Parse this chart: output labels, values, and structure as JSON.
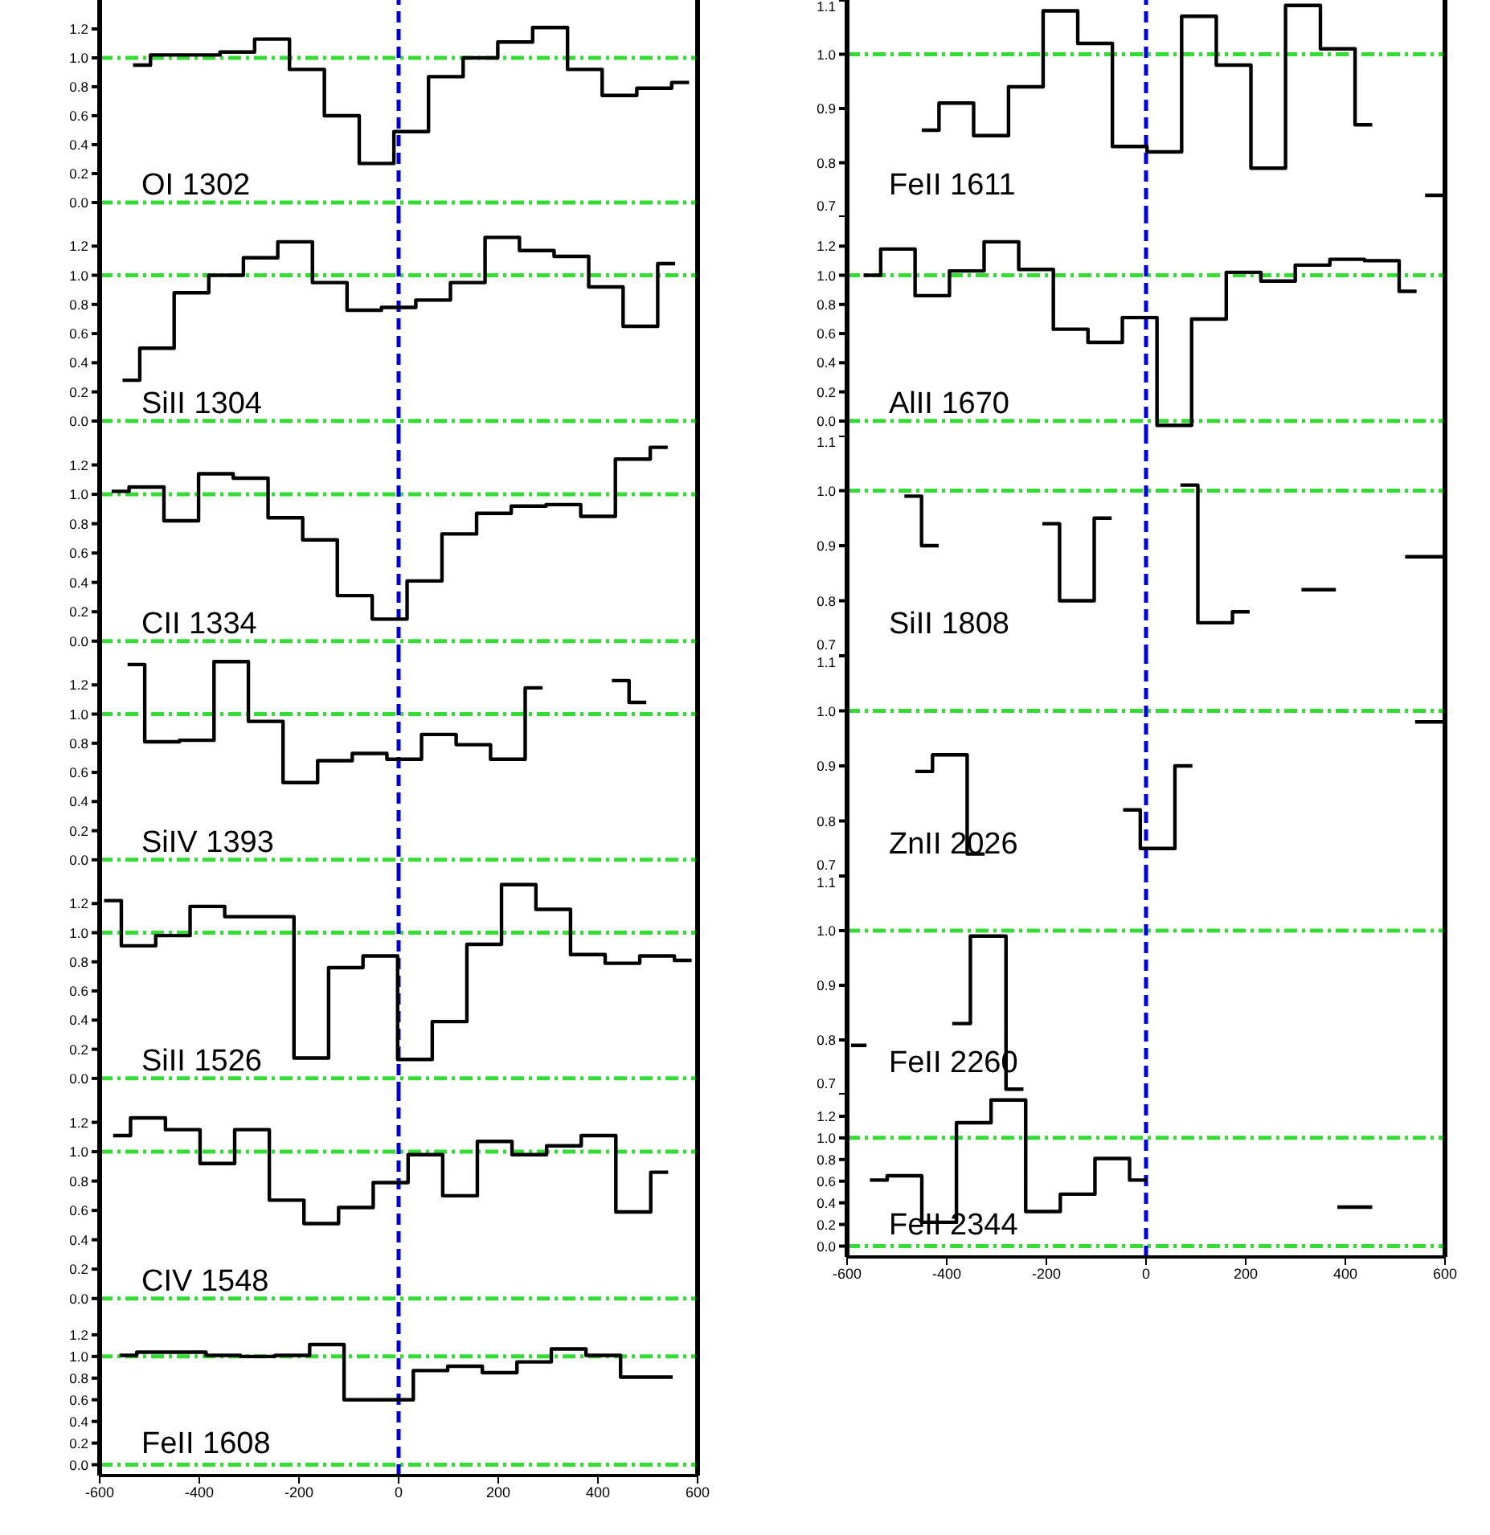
{
  "chart_data": [
    {
      "type": "step",
      "annotations": [
        "OI 1302"
      ],
      "color": "#000000",
      "x": [
        -533,
        -463,
        -393,
        -324,
        -254,
        -184,
        -114,
        -44,
        25,
        95,
        164,
        234,
        304,
        374,
        443,
        513,
        583
      ],
      "values": [
        0.95,
        1.02,
        1.02,
        1.04,
        1.13,
        0.92,
        0.6,
        0.27,
        0.49,
        0.87,
        1.0,
        1.11,
        1.21,
        0.92,
        0.74,
        0.79,
        0.83
      ],
      "xlim": [
        -600,
        600
      ],
      "xticks": [
        -600,
        -400,
        -200,
        0,
        200,
        400,
        600
      ],
      "ylim": [
        -0.1,
        1.4
      ],
      "yticks": [
        {
          "value": 0,
          "label": "0.0"
        },
        {
          "value": 0.2,
          "label": "0.2"
        },
        {
          "value": 0.4,
          "label": "0.4"
        },
        {
          "value": 0.6,
          "label": "0.6"
        },
        {
          "value": 0.8,
          "label": "0.8"
        },
        {
          "value": 1,
          "label": "1.0"
        },
        {
          "value": 1.2,
          "label": "1.2"
        }
      ],
      "tick_labels": "y",
      "ref_lines": [
        {
          "axis": "y",
          "value": 0,
          "color": "#33dd33",
          "line_style": "dashed"
        },
        {
          "axis": "y",
          "value": 1,
          "color": "#33dd33",
          "line_style": "dashed"
        },
        {
          "axis": "x",
          "value": 0,
          "color": "#0000dd",
          "line_style": "dashed"
        }
      ]
    },
    {
      "type": "step",
      "annotations": [
        "SiII 1304"
      ],
      "color": "#000000",
      "x": [
        -554,
        -485,
        -416,
        -346,
        -277,
        -208,
        -138,
        -69,
        0,
        69,
        139,
        208,
        277,
        347,
        416,
        485,
        555
      ],
      "values": [
        0.28,
        0.5,
        0.88,
        1.0,
        1.12,
        1.23,
        0.95,
        0.76,
        0.78,
        0.83,
        0.95,
        1.26,
        1.17,
        1.13,
        0.92,
        0.65,
        1.08
      ],
      "xlim": [
        -600,
        600
      ],
      "xticks": [
        -600,
        -400,
        -200,
        0,
        200,
        400,
        600
      ],
      "ylim": [
        -0.1,
        1.4
      ],
      "yticks": [
        {
          "value": 0,
          "label": "0.0"
        },
        {
          "value": 0.2,
          "label": "0.2"
        },
        {
          "value": 0.4,
          "label": "0.4"
        },
        {
          "value": 0.6,
          "label": "0.6"
        },
        {
          "value": 0.8,
          "label": "0.8"
        },
        {
          "value": 1,
          "label": "1.0"
        },
        {
          "value": 1.2,
          "label": "1.2"
        }
      ],
      "tick_labels": "y",
      "ref_lines": [
        {
          "axis": "y",
          "value": 0,
          "color": "#33dd33",
          "line_style": "dashed"
        },
        {
          "axis": "y",
          "value": 1,
          "color": "#33dd33",
          "line_style": "dashed"
        },
        {
          "axis": "x",
          "value": 0,
          "color": "#0000dd",
          "line_style": "dashed"
        }
      ]
    },
    {
      "type": "step",
      "annotations": [
        "CII 1334"
      ],
      "color": "#000000",
      "x": [
        -576,
        -506,
        -436,
        -367,
        -297,
        -227,
        -158,
        -88,
        -18,
        52,
        122,
        191,
        261,
        331,
        400,
        470,
        540
      ],
      "values": [
        1.02,
        1.05,
        0.82,
        1.14,
        1.11,
        0.84,
        0.69,
        0.31,
        0.15,
        0.41,
        0.73,
        0.87,
        0.92,
        0.93,
        0.85,
        1.24,
        1.32
      ],
      "xlim": [
        -600,
        600
      ],
      "xticks": [
        -600,
        -400,
        -200,
        0,
        200,
        400,
        600
      ],
      "ylim": [
        -0.1,
        1.4
      ],
      "yticks": [
        {
          "value": 0,
          "label": "0.0"
        },
        {
          "value": 0.2,
          "label": "0.2"
        },
        {
          "value": 0.4,
          "label": "0.4"
        },
        {
          "value": 0.6,
          "label": "0.6"
        },
        {
          "value": 0.8,
          "label": "0.8"
        },
        {
          "value": 1,
          "label": "1.0"
        },
        {
          "value": 1.2,
          "label": "1.2"
        }
      ],
      "tick_labels": "y",
      "ref_lines": [
        {
          "axis": "y",
          "value": 0,
          "color": "#33dd33",
          "line_style": "dashed"
        },
        {
          "axis": "y",
          "value": 1,
          "color": "#33dd33",
          "line_style": "dashed"
        },
        {
          "axis": "x",
          "value": 0,
          "color": "#0000dd",
          "line_style": "dashed"
        }
      ]
    },
    {
      "type": "step",
      "annotations": [
        "SiIV 1393"
      ],
      "color": "#000000",
      "x": [
        -544,
        -475,
        -405,
        -336,
        -267,
        -197,
        -128,
        -58,
        11,
        81,
        150,
        219,
        289,
        358,
        428,
        497
      ],
      "values": [
        1.34,
        0.81,
        0.82,
        1.36,
        0.95,
        0.53,
        0.68,
        0.73,
        0.69,
        0.86,
        0.79,
        0.69,
        1.18,
        null,
        1.23,
        1.08
      ],
      "xlim": [
        -600,
        600
      ],
      "xticks": [
        -600,
        -400,
        -200,
        0,
        200,
        400,
        600
      ],
      "ylim": [
        -0.1,
        1.4
      ],
      "yticks": [
        {
          "value": 0,
          "label": "0.0"
        },
        {
          "value": 0.2,
          "label": "0.2"
        },
        {
          "value": 0.4,
          "label": "0.4"
        },
        {
          "value": 0.6,
          "label": "0.6"
        },
        {
          "value": 0.8,
          "label": "0.8"
        },
        {
          "value": 1,
          "label": "1.0"
        },
        {
          "value": 1.2,
          "label": "1.2"
        }
      ],
      "tick_labels": "y",
      "ref_lines": [
        {
          "axis": "y",
          "value": 0,
          "color": "#33dd33",
          "line_style": "dashed"
        },
        {
          "axis": "y",
          "value": 1,
          "color": "#33dd33",
          "line_style": "dashed"
        },
        {
          "axis": "x",
          "value": 0,
          "color": "#0000dd",
          "line_style": "dashed"
        }
      ]
    },
    {
      "type": "step",
      "annotations": [
        "SiII 1526"
      ],
      "color": "#000000",
      "x": [
        -591,
        -522,
        -453,
        -384,
        -314,
        -245,
        -175,
        -106,
        -37,
        33,
        102,
        172,
        241,
        310,
        380,
        449,
        519,
        588
      ],
      "values": [
        1.22,
        0.91,
        0.98,
        1.18,
        1.11,
        1.11,
        0.14,
        0.76,
        0.84,
        0.13,
        0.39,
        0.92,
        1.33,
        1.16,
        0.85,
        0.79,
        0.84,
        0.81
      ],
      "xlim": [
        -600,
        600
      ],
      "xticks": [
        -600,
        -400,
        -200,
        0,
        200,
        400,
        600
      ],
      "ylim": [
        -0.1,
        1.4
      ],
      "yticks": [
        {
          "value": 0,
          "label": "0.0"
        },
        {
          "value": 0.2,
          "label": "0.2"
        },
        {
          "value": 0.4,
          "label": "0.4"
        },
        {
          "value": 0.6,
          "label": "0.6"
        },
        {
          "value": 0.8,
          "label": "0.8"
        },
        {
          "value": 1,
          "label": "1.0"
        },
        {
          "value": 1.2,
          "label": "1.2"
        }
      ],
      "tick_labels": "y",
      "ref_lines": [
        {
          "axis": "y",
          "value": 0,
          "color": "#33dd33",
          "line_style": "dashed"
        },
        {
          "axis": "y",
          "value": 1,
          "color": "#33dd33",
          "line_style": "dashed"
        },
        {
          "axis": "x",
          "value": 0,
          "color": "#0000dd",
          "line_style": "dashed"
        }
      ]
    },
    {
      "type": "step",
      "annotations": [
        "CIV 1548"
      ],
      "color": "#000000",
      "x": [
        -573,
        -503,
        -433,
        -364,
        -294,
        -225,
        -155,
        -86,
        -16,
        54,
        123,
        193,
        262,
        332,
        401,
        471,
        541
      ],
      "values": [
        1.11,
        1.23,
        1.15,
        0.92,
        1.15,
        0.67,
        0.51,
        0.62,
        0.79,
        0.98,
        0.7,
        1.07,
        0.98,
        1.04,
        1.11,
        0.59,
        0.86
      ],
      "xlim": [
        -600,
        600
      ],
      "xticks": [
        -600,
        -400,
        -200,
        0,
        200,
        400,
        600
      ],
      "ylim": [
        -0.1,
        1.4
      ],
      "yticks": [
        {
          "value": 0,
          "label": "0.0"
        },
        {
          "value": 0.2,
          "label": "0.2"
        },
        {
          "value": 0.4,
          "label": "0.4"
        },
        {
          "value": 0.6,
          "label": "0.6"
        },
        {
          "value": 0.8,
          "label": "0.8"
        },
        {
          "value": 1,
          "label": "1.0"
        },
        {
          "value": 1.2,
          "label": "1.2"
        }
      ],
      "tick_labels": "y",
      "ref_lines": [
        {
          "axis": "y",
          "value": 0,
          "color": "#33dd33",
          "line_style": "dashed"
        },
        {
          "axis": "y",
          "value": 1,
          "color": "#33dd33",
          "line_style": "dashed"
        },
        {
          "axis": "x",
          "value": 0,
          "color": "#0000dd",
          "line_style": "dashed"
        }
      ]
    },
    {
      "type": "step",
      "annotations": [
        "FeII 1608"
      ],
      "color": "#000000",
      "x": [
        -560,
        -491,
        -421,
        -352,
        -283,
        -213,
        -144,
        -75,
        -5,
        64,
        133,
        203,
        272,
        341,
        411,
        480,
        550
      ],
      "values": [
        1.01,
        1.04,
        1.04,
        1.01,
        1.0,
        1.01,
        1.11,
        0.6,
        0.6,
        0.87,
        0.91,
        0.85,
        0.95,
        1.07,
        1.01,
        0.81,
        0.81
      ],
      "xlim": [
        -600,
        600
      ],
      "xticks": [
        -600,
        -400,
        -200,
        0,
        200,
        400,
        600
      ],
      "ylim": [
        -0.1,
        1.4
      ],
      "yticks": [
        {
          "value": 0,
          "label": "0.0"
        },
        {
          "value": 0.2,
          "label": "0.2"
        },
        {
          "value": 0.4,
          "label": "0.4"
        },
        {
          "value": 0.6,
          "label": "0.6"
        },
        {
          "value": 0.8,
          "label": "0.8"
        },
        {
          "value": 1,
          "label": "1.0"
        },
        {
          "value": 1.2,
          "label": "1.2"
        }
      ],
      "ref_lines": [
        {
          "axis": "y",
          "value": 0,
          "color": "#33dd33",
          "line_style": "dashed"
        },
        {
          "axis": "y",
          "value": 1,
          "color": "#33dd33",
          "line_style": "dashed"
        },
        {
          "axis": "x",
          "value": 0,
          "color": "#0000dd",
          "line_style": "dashed"
        }
      ]
    },
    {
      "type": "step",
      "annotations": [
        "FeII 1611"
      ],
      "color": "#000000",
      "x": [
        -450,
        -381,
        -311,
        -241,
        -172,
        -102,
        -33,
        37,
        106,
        176,
        245,
        315,
        385,
        454,
        524,
        560,
        600
      ],
      "values": [
        0.86,
        0.91,
        0.85,
        0.94,
        1.08,
        1.02,
        0.83,
        0.82,
        1.07,
        0.98,
        0.79,
        1.09,
        1.01,
        0.87,
        null,
        0.74,
        0.74
      ],
      "xlim": [
        -600,
        600
      ],
      "xticks": [
        -600,
        -400,
        -200,
        0,
        200,
        400,
        600
      ],
      "ylim": [
        0.7,
        1.1
      ],
      "yticks": [
        {
          "value": 0.7,
          "label": "0.7"
        },
        {
          "value": 0.8,
          "label": "0.8"
        },
        {
          "value": 0.9,
          "label": "0.9"
        },
        {
          "value": 1,
          "label": "1.0"
        },
        {
          "value": 1.1,
          "label": "1.1"
        }
      ],
      "tick_labels": "y",
      "ref_lines": [
        {
          "axis": "y",
          "value": 1,
          "color": "#33dd33",
          "line_style": "dashed"
        },
        {
          "axis": "x",
          "value": 0,
          "color": "#0000dd",
          "line_style": "dashed"
        }
      ]
    },
    {
      "type": "step",
      "annotations": [
        "AlII 1670"
      ],
      "color": "#000000",
      "x": [
        -567,
        -498,
        -429,
        -360,
        -290,
        -221,
        -151,
        -82,
        -13,
        57,
        126,
        196,
        265,
        334,
        404,
        473,
        543
      ],
      "values": [
        1.0,
        1.18,
        0.86,
        1.03,
        1.23,
        1.04,
        0.63,
        0.54,
        0.71,
        -0.03,
        0.7,
        1.02,
        0.96,
        1.07,
        1.11,
        1.1,
        0.89
      ],
      "xlim": [
        -600,
        600
      ],
      "xticks": [
        -600,
        -400,
        -200,
        0,
        200,
        400,
        600
      ],
      "ylim": [
        -0.1,
        1.4
      ],
      "yticks": [
        {
          "value": 0,
          "label": "0.0"
        },
        {
          "value": 0.2,
          "label": "0.2"
        },
        {
          "value": 0.4,
          "label": "0.4"
        },
        {
          "value": 0.6,
          "label": "0.6"
        },
        {
          "value": 0.8,
          "label": "0.8"
        },
        {
          "value": 1,
          "label": "1.0"
        },
        {
          "value": 1.2,
          "label": "1.2"
        }
      ],
      "tick_labels": "y",
      "ref_lines": [
        {
          "axis": "y",
          "value": 0,
          "color": "#33dd33",
          "line_style": "dashed"
        },
        {
          "axis": "y",
          "value": 1,
          "color": "#33dd33",
          "line_style": "dashed"
        },
        {
          "axis": "x",
          "value": 0,
          "color": "#0000dd",
          "line_style": "dashed"
        }
      ]
    },
    {
      "type": "step",
      "annotations": [
        "SiII 1808"
      ],
      "color": "#000000",
      "x": [
        -485,
        -416,
        -346,
        -277,
        -208,
        -139,
        -69,
        0,
        69,
        139,
        208,
        277,
        312,
        381,
        416,
        520,
        600
      ],
      "values": [
        0.99,
        0.9,
        null,
        null,
        0.94,
        0.8,
        0.95,
        null,
        1.01,
        0.76,
        0.78,
        null,
        0.82,
        0.82,
        null,
        0.88,
        0.88
      ],
      "xlim": [
        -600,
        600
      ],
      "xticks": [
        -600,
        -400,
        -200,
        0,
        200,
        400,
        600
      ],
      "ylim": [
        0.7,
        1.1
      ],
      "yticks": [
        {
          "value": 0.7,
          "label": "0.7"
        },
        {
          "value": 0.8,
          "label": "0.8"
        },
        {
          "value": 0.9,
          "label": "0.9"
        },
        {
          "value": 1,
          "label": "1.0"
        },
        {
          "value": 1.1,
          "label": "1.1"
        }
      ],
      "tick_labels": "y",
      "ref_lines": [
        {
          "axis": "y",
          "value": 1,
          "color": "#33dd33",
          "line_style": "dashed"
        },
        {
          "axis": "x",
          "value": 0,
          "color": "#0000dd",
          "line_style": "dashed"
        }
      ]
    },
    {
      "type": "step",
      "annotations": [
        "ZnII 2026"
      ],
      "color": "#000000",
      "x": [
        -463,
        -394,
        -324,
        -255,
        -46,
        23,
        93,
        162,
        540,
        600
      ],
      "values": [
        0.89,
        0.92,
        0.74,
        null,
        0.82,
        0.75,
        0.9,
        null,
        0.98,
        0.98
      ],
      "xlim": [
        -600,
        600
      ],
      "xticks": [
        -600,
        -400,
        -200,
        0,
        200,
        400,
        600
      ],
      "ylim": [
        0.7,
        1.1
      ],
      "yticks": [
        {
          "value": 0.7,
          "label": "0.7"
        },
        {
          "value": 0.8,
          "label": "0.8"
        },
        {
          "value": 0.9,
          "label": "0.9"
        },
        {
          "value": 1,
          "label": "1.0"
        },
        {
          "value": 1.1,
          "label": "1.1"
        }
      ],
      "tick_labels": "y",
      "ref_lines": [
        {
          "axis": "y",
          "value": 1,
          "color": "#33dd33",
          "line_style": "dashed"
        },
        {
          "axis": "x",
          "value": 0,
          "color": "#0000dd",
          "line_style": "dashed"
        }
      ]
    },
    {
      "type": "step",
      "annotations": [
        "FeII 2260"
      ],
      "color": "#000000",
      "x": [
        -592,
        -561,
        -527,
        -389,
        -316,
        -246
      ],
      "values": [
        0.79,
        0.79,
        null,
        0.83,
        0.99,
        0.71
      ],
      "xlim": [
        -600,
        600
      ],
      "xticks": [
        -600,
        -400,
        -200,
        0,
        200,
        400,
        600
      ],
      "ylim": [
        0.7,
        1.1
      ],
      "yticks": [
        {
          "value": 0.7,
          "label": "0.7"
        },
        {
          "value": 0.8,
          "label": "0.8"
        },
        {
          "value": 0.9,
          "label": "0.9"
        },
        {
          "value": 1,
          "label": "1.0"
        },
        {
          "value": 1.1,
          "label": "1.1"
        }
      ],
      "tick_labels": "y",
      "ref_lines": [
        {
          "axis": "y",
          "value": 1,
          "color": "#33dd33",
          "line_style": "dashed"
        },
        {
          "axis": "x",
          "value": 0,
          "color": "#0000dd",
          "line_style": "dashed"
        }
      ]
    },
    {
      "type": "step",
      "annotations": [
        "FeII 2344"
      ],
      "color": "#000000",
      "x": [
        -554,
        -485,
        -415,
        -346,
        -276,
        -207,
        -137,
        -68,
        2,
        71,
        384,
        454
      ],
      "values": [
        0.61,
        0.65,
        0.22,
        1.14,
        1.35,
        0.32,
        0.48,
        0.81,
        0.61,
        null,
        0.36,
        0.36
      ],
      "xlim": [
        -600,
        600
      ],
      "xticks": [
        -600,
        -400,
        -200,
        0,
        200,
        400,
        600
      ],
      "ylim": [
        -0.1,
        1.4
      ],
      "yticks": [
        {
          "value": 0,
          "label": "0.0"
        },
        {
          "value": 0.2,
          "label": "0.2"
        },
        {
          "value": 0.4,
          "label": "0.4"
        },
        {
          "value": 0.6,
          "label": "0.6"
        },
        {
          "value": 0.8,
          "label": "0.8"
        },
        {
          "value": 1,
          "label": "1.0"
        },
        {
          "value": 1.2,
          "label": "1.2"
        }
      ],
      "ref_lines": [
        {
          "axis": "y",
          "value": 0,
          "color": "#33dd33",
          "line_style": "dashed"
        },
        {
          "axis": "y",
          "value": 1,
          "color": "#33dd33",
          "line_style": "dashed"
        },
        {
          "axis": "x",
          "value": 0,
          "color": "#0000dd",
          "line_style": "dashed"
        }
      ]
    }
  ]
}
